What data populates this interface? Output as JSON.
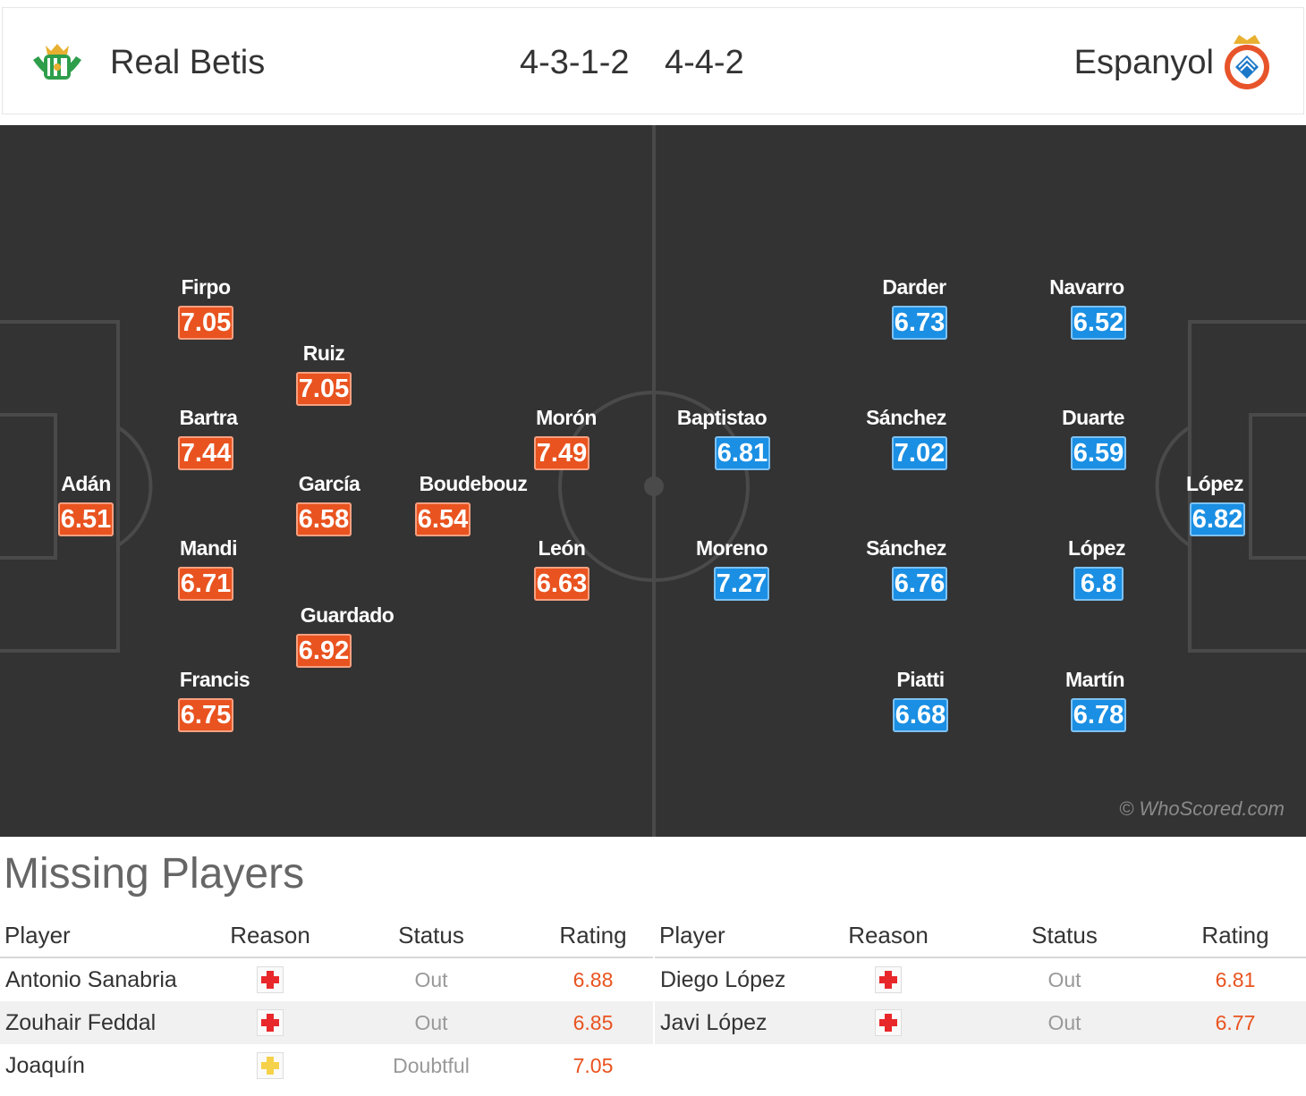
{
  "colors": {
    "home_rating_bg": "#e9531f",
    "away_rating_bg": "#1a8fe3",
    "pitch_bg": "#333333",
    "pitch_lines": "#4a4a4a",
    "injury_icon": "#e8272a",
    "doubtful_icon": "#f6d24a"
  },
  "header": {
    "home_team": "Real Betis",
    "away_team": "Espanyol",
    "home_formation": "4-3-1-2",
    "away_formation": "4-4-2",
    "home_crest_icon": "real-betis-crest-icon",
    "away_crest_icon": "espanyol-crest-icon"
  },
  "pitch": {
    "watermark": "© WhoScored.com",
    "home_players": [
      {
        "name": "Firpo",
        "rating": "7.05"
      },
      {
        "name": "Ruiz",
        "rating": "7.05"
      },
      {
        "name": "Bartra",
        "rating": "7.44"
      },
      {
        "name": "Morón",
        "rating": "7.49"
      },
      {
        "name": "Adán",
        "rating": "6.51"
      },
      {
        "name": "García",
        "rating": "6.58"
      },
      {
        "name": "Boudebouz",
        "rating": "6.54"
      },
      {
        "name": "Mandi",
        "rating": "6.71"
      },
      {
        "name": "León",
        "rating": "6.63"
      },
      {
        "name": "Guardado",
        "rating": "6.92"
      },
      {
        "name": "Francis",
        "rating": "6.75"
      }
    ],
    "away_players": [
      {
        "name": "Darder",
        "rating": "6.73"
      },
      {
        "name": "Navarro",
        "rating": "6.52"
      },
      {
        "name": "Baptistao",
        "rating": "6.81"
      },
      {
        "name": "Sánchez",
        "rating": "7.02"
      },
      {
        "name": "Duarte",
        "rating": "6.59"
      },
      {
        "name": "López",
        "rating": "6.82"
      },
      {
        "name": "Moreno",
        "rating": "7.27"
      },
      {
        "name": "Sánchez",
        "rating": "6.76"
      },
      {
        "name": "López",
        "rating": "6.8"
      },
      {
        "name": "Piatti",
        "rating": "6.68"
      },
      {
        "name": "Martín",
        "rating": "6.78"
      }
    ]
  },
  "missing": {
    "title": "Missing Players",
    "columns": {
      "player": "Player",
      "reason": "Reason",
      "status": "Status",
      "rating": "Rating"
    },
    "home": [
      {
        "player": "Antonio Sanabria",
        "reason_icon": "injury-cross-icon",
        "status": "Out",
        "rating": "6.88"
      },
      {
        "player": "Zouhair Feddal",
        "reason_icon": "injury-cross-icon",
        "status": "Out",
        "rating": "6.85"
      },
      {
        "player": "Joaquín",
        "reason_icon": "doubtful-cross-icon",
        "status": "Doubtful",
        "rating": "7.05"
      }
    ],
    "away": [
      {
        "player": "Diego López",
        "reason_icon": "injury-cross-icon",
        "status": "Out",
        "rating": "6.81"
      },
      {
        "player": "Javi López",
        "reason_icon": "injury-cross-icon",
        "status": "Out",
        "rating": "6.77"
      }
    ]
  }
}
